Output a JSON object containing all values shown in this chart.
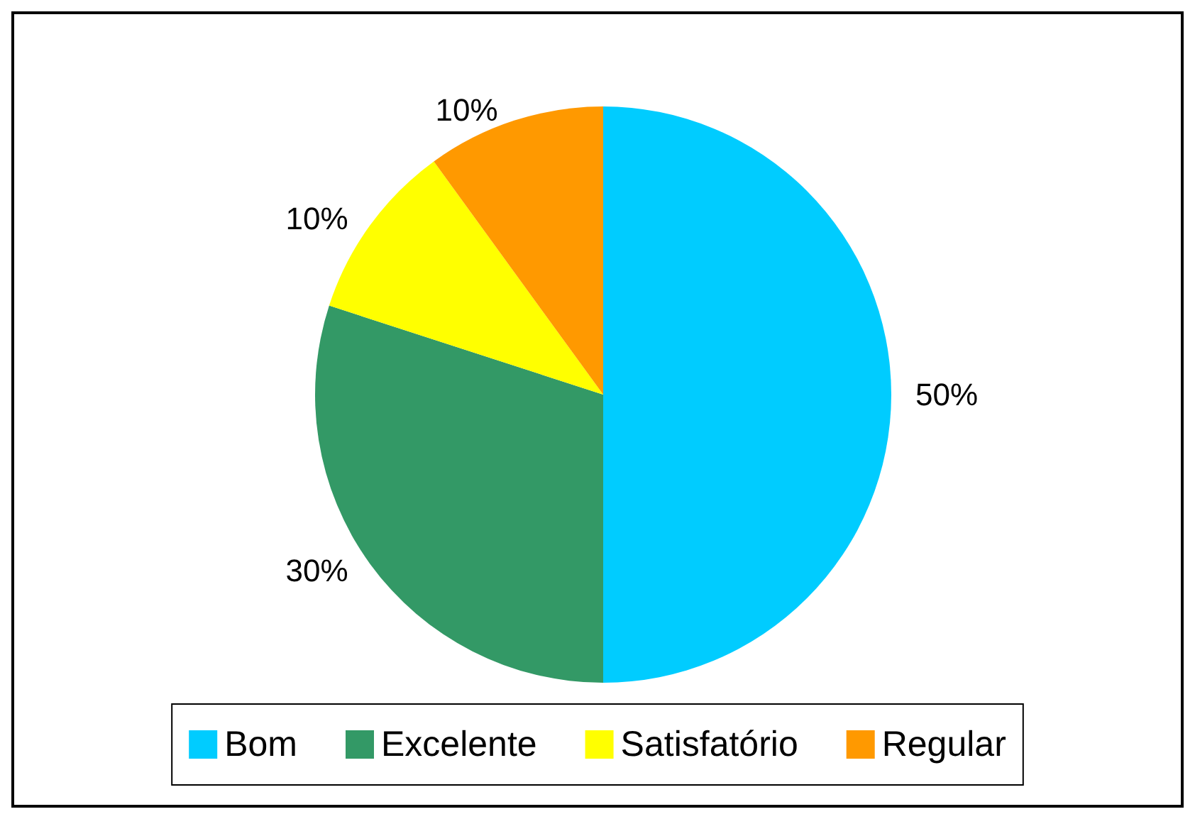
{
  "chart_data": {
    "type": "pie",
    "categories": [
      "Bom",
      "Excelente",
      "Satisfatório",
      "Regular"
    ],
    "values": [
      50,
      30,
      10,
      10
    ],
    "colors": [
      "#00ccff",
      "#339966",
      "#ffff00",
      "#ff9900"
    ],
    "value_labels": [
      "50%",
      "30%",
      "10%",
      "10%"
    ],
    "legend": "bottom"
  }
}
